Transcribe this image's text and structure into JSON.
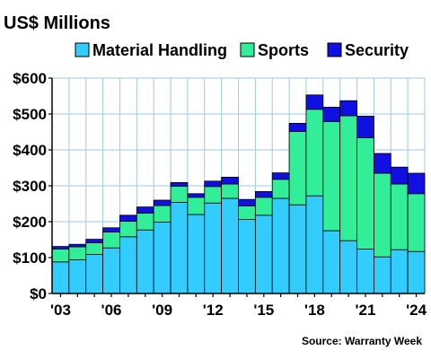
{
  "chart_data": {
    "type": "bar",
    "stacked": true,
    "title": "US$ Millions",
    "source": "Source: Warranty Week",
    "xlabel": "",
    "ylabel": "",
    "ylim": [
      0,
      600
    ],
    "yticks": [
      "$0",
      "$100",
      "$200",
      "$300",
      "$400",
      "$500",
      "$600"
    ],
    "ytick_values": [
      0,
      100,
      200,
      300,
      400,
      500,
      600
    ],
    "grid": true,
    "legend_position": "top",
    "categories": [
      "2003",
      "2004",
      "2005",
      "2006",
      "2007",
      "2008",
      "2009",
      "2010",
      "2011",
      "2012",
      "2013",
      "2014",
      "2015",
      "2016",
      "2017",
      "2018",
      "2019",
      "2020",
      "2021",
      "2022",
      "2023",
      "2024"
    ],
    "xtick_labels": [
      {
        "category": "2003",
        "label": "'03"
      },
      {
        "category": "2006",
        "label": "'06"
      },
      {
        "category": "2009",
        "label": "'09"
      },
      {
        "category": "2012",
        "label": "'12"
      },
      {
        "category": "2015",
        "label": "'15"
      },
      {
        "category": "2018",
        "label": "'18"
      },
      {
        "category": "2021",
        "label": "'21"
      },
      {
        "category": "2024",
        "label": "'24"
      }
    ],
    "series": [
      {
        "name": "Material Handling",
        "color": "#33CCFF",
        "values": [
          88,
          94,
          109,
          127,
          158,
          177,
          199,
          254,
          220,
          252,
          265,
          206,
          218,
          265,
          247,
          272,
          175,
          147,
          124,
          102,
          122,
          117
        ]
      },
      {
        "name": "Sports",
        "color": "#33EE99",
        "values": [
          36,
          36,
          32,
          44,
          43,
          47,
          46,
          45,
          48,
          46,
          40,
          38,
          50,
          53,
          204,
          241,
          304,
          348,
          310,
          233,
          183,
          161
        ]
      },
      {
        "name": "Security",
        "color": "#1010E0",
        "values": [
          7,
          7,
          10,
          12,
          17,
          17,
          15,
          10,
          10,
          15,
          19,
          18,
          16,
          18,
          23,
          40,
          40,
          42,
          60,
          55,
          47,
          57
        ]
      }
    ]
  }
}
